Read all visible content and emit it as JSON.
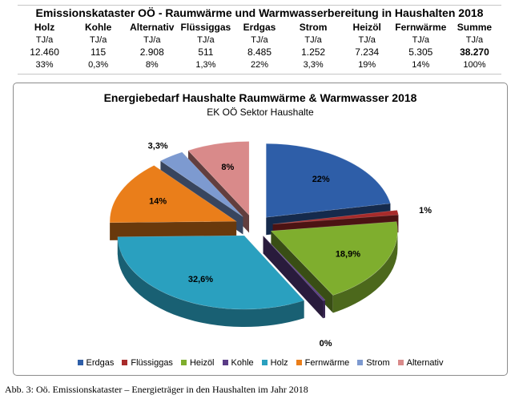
{
  "table": {
    "title": "Emissionskataster OÖ - Raumwärme und Warmwasserbereitung in Haushalten 2018",
    "columns": [
      "Holz",
      "Kohle",
      "Alternativ",
      "Flüssiggas",
      "Erdgas",
      "Strom",
      "Heizöl",
      "Fernwärme",
      "Summe"
    ],
    "unit": "TJ/a",
    "values": [
      "12.460",
      "115",
      "2.908",
      "511",
      "8.485",
      "1.252",
      "7.234",
      "5.305",
      "38.270"
    ],
    "percentages": [
      "33%",
      "0,3%",
      "8%",
      "1,3%",
      "22%",
      "3,3%",
      "19%",
      "14%",
      "100%"
    ]
  },
  "chart_data": {
    "type": "pie",
    "title": "Energiebedarf Haushalte Raumwärme & Warmwasser 2018",
    "subtitle": "EK OÖ Sektor Haushalte",
    "style": "3d-exploded",
    "legend_position": "bottom",
    "slices": [
      {
        "name": "Erdgas",
        "value": 22,
        "label": "22%",
        "color": "#2e5ea8"
      },
      {
        "name": "Flüssiggas",
        "value": 1,
        "label": "1%",
        "color": "#a82b2b"
      },
      {
        "name": "Heizöl",
        "value": 18.9,
        "label": "18,9%",
        "color": "#7fae2e"
      },
      {
        "name": "Kohle",
        "value": 0.3,
        "label": "0%",
        "color": "#5a3c86"
      },
      {
        "name": "Holz",
        "value": 32.6,
        "label": "32,6%",
        "color": "#2aa0bf"
      },
      {
        "name": "Fernwärme",
        "value": 14,
        "label": "14%",
        "color": "#ea7e1a"
      },
      {
        "name": "Strom",
        "value": 3.3,
        "label": "3,3%",
        "color": "#7d9ad0"
      },
      {
        "name": "Alternativ",
        "value": 8,
        "label": "8%",
        "color": "#d98a8a"
      }
    ]
  },
  "caption": "Abb. 3: Oö. Emissionskataster – Energieträger in den Haushalten im Jahr 2018"
}
